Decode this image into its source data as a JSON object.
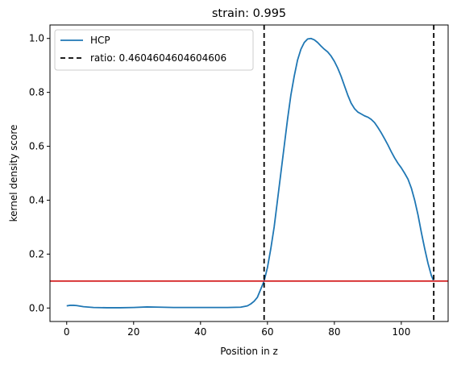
{
  "chart_data": {
    "type": "line",
    "title": "strain: 0.995",
    "xlabel": "Position in z",
    "ylabel": "kernel density score",
    "xlim": [
      -5,
      114
    ],
    "ylim": [
      -0.05,
      1.05
    ],
    "xticks": [
      0,
      20,
      40,
      60,
      80,
      100
    ],
    "yticks": [
      0.0,
      0.2,
      0.4,
      0.6,
      0.8,
      1.0
    ],
    "xtick_labels": [
      "0",
      "20",
      "40",
      "60",
      "80",
      "100"
    ],
    "ytick_labels": [
      "0.0",
      "0.2",
      "0.4",
      "0.6",
      "0.8",
      "1.0"
    ],
    "grid": false,
    "legend_position": "top-left",
    "series": [
      {
        "name": "HCP",
        "color": "#1f77b4",
        "x": [
          0,
          1,
          2,
          3,
          5,
          8,
          12,
          16,
          20,
          24,
          28,
          32,
          36,
          40,
          44,
          48,
          52,
          54,
          55,
          56,
          57,
          58,
          59,
          60,
          61,
          62,
          63,
          64,
          65,
          66,
          67,
          68,
          69,
          70,
          71,
          72,
          73,
          74,
          75,
          76,
          77,
          78,
          79,
          80,
          81,
          82,
          83,
          84,
          85,
          86,
          87,
          88,
          89,
          90,
          91,
          92,
          93,
          94,
          95,
          96,
          97,
          98,
          99,
          100,
          101,
          102,
          103,
          104,
          105,
          106,
          107,
          108,
          109,
          109.7
        ],
        "y": [
          0.008,
          0.01,
          0.01,
          0.009,
          0.005,
          0.002,
          0.001,
          0.001,
          0.002,
          0.004,
          0.003,
          0.002,
          0.002,
          0.002,
          0.002,
          0.002,
          0.003,
          0.008,
          0.015,
          0.025,
          0.04,
          0.07,
          0.1,
          0.15,
          0.22,
          0.3,
          0.4,
          0.5,
          0.6,
          0.7,
          0.79,
          0.86,
          0.92,
          0.96,
          0.985,
          0.998,
          1.0,
          0.995,
          0.985,
          0.972,
          0.96,
          0.95,
          0.935,
          0.915,
          0.89,
          0.86,
          0.825,
          0.79,
          0.76,
          0.74,
          0.727,
          0.72,
          0.713,
          0.708,
          0.7,
          0.688,
          0.67,
          0.65,
          0.628,
          0.605,
          0.58,
          0.557,
          0.537,
          0.52,
          0.5,
          0.478,
          0.445,
          0.4,
          0.345,
          0.28,
          0.22,
          0.165,
          0.12,
          0.1
        ]
      }
    ],
    "vlines": [
      {
        "label": "ratio: 0.4604604604604606",
        "x": 59,
        "color": "#000000",
        "style": "dashed"
      },
      {
        "label": "",
        "x": 109.7,
        "color": "#000000",
        "style": "dashed"
      }
    ],
    "hlines": [
      {
        "label": "",
        "y": 0.1,
        "color": "#d62728",
        "style": "solid"
      }
    ]
  }
}
